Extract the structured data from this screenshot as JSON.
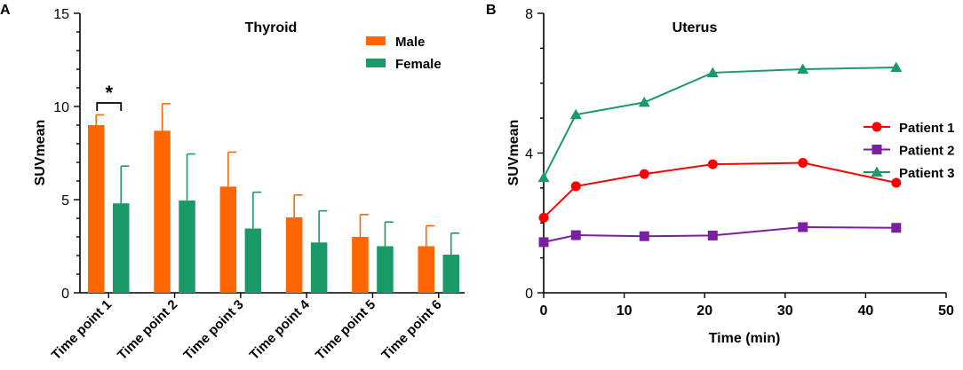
{
  "chart_data": [
    {
      "type": "bar",
      "panel_label": "A",
      "title": "Thyroid",
      "xlabel": "",
      "ylabel": "SUVmean",
      "ylim": [
        0,
        15
      ],
      "yticks": [
        0,
        5,
        10,
        15
      ],
      "categories": [
        "Time point 1",
        "Time point 2",
        "Time point 3",
        "Time point 4",
        "Time point 5",
        "Time point 6"
      ],
      "series": [
        {
          "name": "Male",
          "color": "#ff6600",
          "values": [
            9.0,
            8.7,
            5.7,
            4.05,
            3.0,
            2.5
          ],
          "errors": [
            0.55,
            1.45,
            1.85,
            1.2,
            1.2,
            1.1
          ]
        },
        {
          "name": "Female",
          "color": "#1a9a68",
          "values": [
            4.8,
            4.95,
            3.45,
            2.7,
            2.5,
            2.05
          ],
          "errors": [
            2.0,
            2.5,
            1.95,
            1.7,
            1.3,
            1.15
          ]
        }
      ],
      "legend": "top-right",
      "annotation": {
        "text": "*",
        "between": "Time point 1"
      }
    },
    {
      "type": "line",
      "panel_label": "B",
      "title": "Uterus",
      "xlabel": "Time (min)",
      "ylabel": "SUVmean",
      "xlim": [
        0,
        50
      ],
      "ylim": [
        0,
        8
      ],
      "xticks": [
        0,
        10,
        20,
        30,
        40,
        50
      ],
      "yticks": [
        0,
        4,
        8
      ],
      "x": [
        0,
        4,
        12.5,
        21,
        32.2,
        43.8
      ],
      "series": [
        {
          "name": "Patient 1",
          "color": "#ff0000",
          "marker": "circle",
          "values": [
            2.15,
            3.05,
            3.4,
            3.68,
            3.72,
            3.15
          ]
        },
        {
          "name": "Patient 2",
          "color": "#7a1fa2",
          "marker": "square",
          "values": [
            1.45,
            1.65,
            1.62,
            1.64,
            1.88,
            1.86
          ]
        },
        {
          "name": "Patient 3",
          "color": "#1a9a68",
          "marker": "triangle",
          "values": [
            3.3,
            5.1,
            5.45,
            6.3,
            6.4,
            6.45
          ]
        }
      ],
      "legend": "right"
    }
  ]
}
